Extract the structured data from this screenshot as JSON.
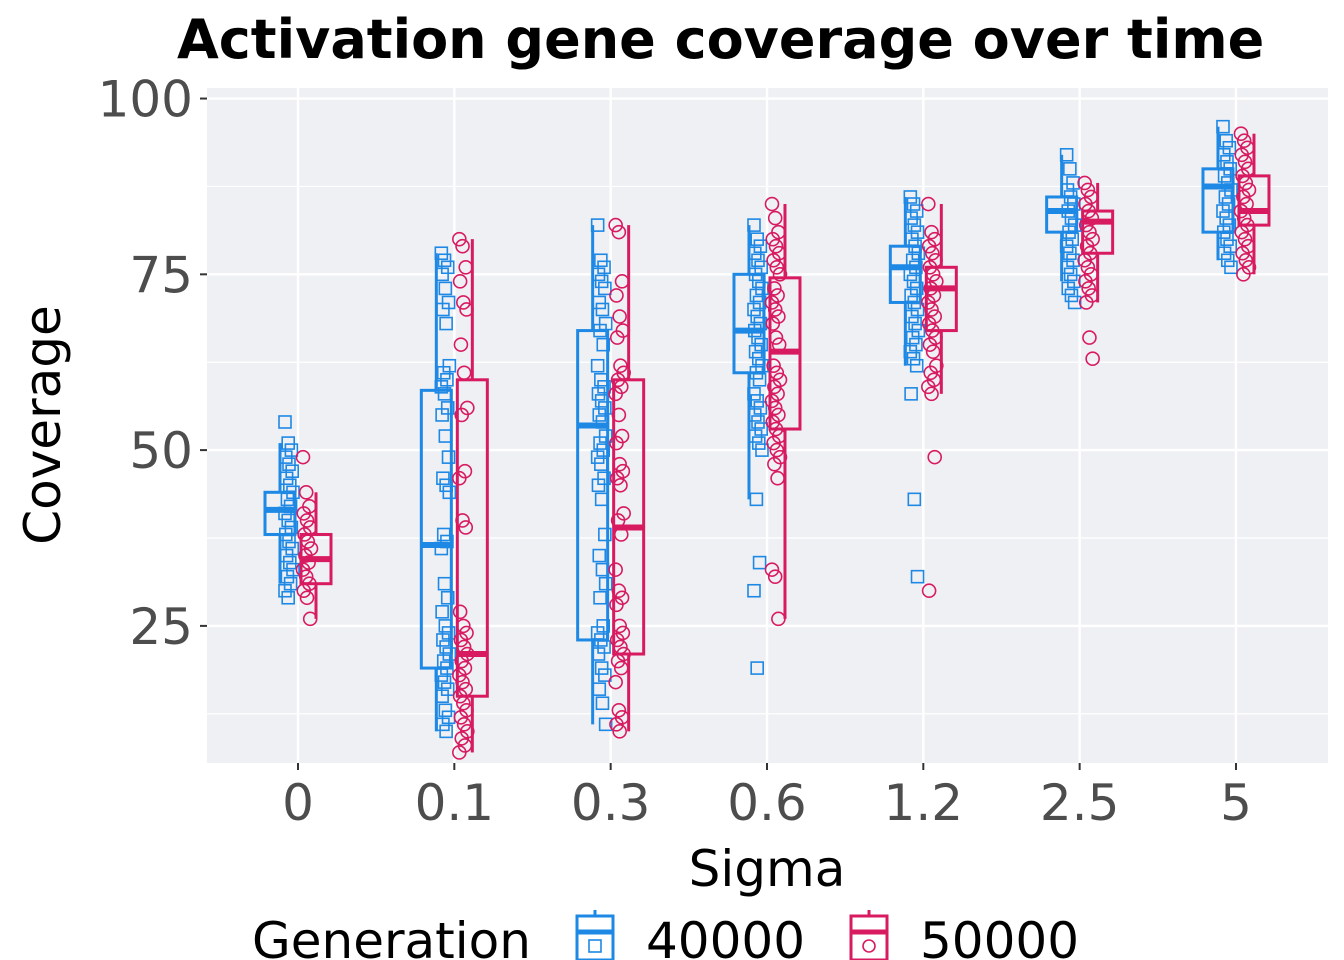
{
  "chart_data": {
    "type": "box",
    "title": "Activation gene coverage over time",
    "xlabel": "Sigma",
    "ylabel": "Coverage",
    "categories": [
      "0",
      "0.1",
      "0.3",
      "0.6",
      "1.2",
      "2.5",
      "5"
    ],
    "yticks": [
      25,
      50,
      75,
      100
    ],
    "ylim": [
      5.5,
      101.5
    ],
    "legend": {
      "title": "Generation",
      "position": "bottom"
    },
    "colors": {
      "40000": "#1e88e5",
      "50000": "#d81b60",
      "panel": "#eff0f4",
      "grid": "#ffffff"
    },
    "series": [
      {
        "name": "40000",
        "marker": "square",
        "boxes": [
          {
            "whisker_low": 31,
            "q1": 38,
            "median": 41.5,
            "q3": 44,
            "whisker_high": 51,
            "points": [
              54,
              51,
              50,
              49,
              48,
              47,
              46,
              45,
              44,
              43,
              42,
              41,
              40,
              39,
              38,
              37,
              36,
              35,
              34,
              33,
              32,
              31,
              30,
              29
            ]
          },
          {
            "whisker_low": 10,
            "q1": 19,
            "median": 36.5,
            "q3": 58.5,
            "whisker_high": 78,
            "points": [
              78,
              77,
              76,
              75,
              73,
              71,
              70,
              68,
              62,
              61,
              60,
              59,
              58,
              56,
              55,
              52,
              49,
              46,
              45,
              44,
              38,
              37,
              36,
              31,
              29,
              27,
              25,
              24,
              23,
              22,
              21,
              20,
              19,
              18,
              17,
              16,
              15,
              13,
              12,
              11,
              10
            ]
          },
          {
            "whisker_low": 11,
            "q1": 23,
            "median": 53.5,
            "q3": 67,
            "whisker_high": 82,
            "points": [
              82,
              77,
              76,
              75,
              74,
              73,
              71,
              70,
              68,
              67,
              65,
              62,
              60,
              59,
              58,
              57,
              56,
              55,
              54,
              52,
              51,
              50,
              49,
              48,
              46,
              45,
              43,
              38,
              35,
              33,
              31,
              29,
              25,
              24,
              23,
              22,
              21,
              19,
              18,
              16,
              14,
              11
            ]
          },
          {
            "whisker_low": 43,
            "q1": 61,
            "median": 67,
            "q3": 75,
            "whisker_high": 82,
            "points": [
              82,
              80,
              79,
              78,
              77,
              76,
              75,
              74,
              73,
              72,
              71,
              70,
              69,
              68,
              67,
              66,
              65,
              64,
              63,
              62,
              61,
              60,
              58,
              57,
              56,
              55,
              54,
              53,
              52,
              51,
              50,
              43,
              34,
              30,
              19
            ]
          },
          {
            "whisker_low": 62,
            "q1": 71,
            "median": 76,
            "q3": 79,
            "whisker_high": 86,
            "points": [
              86,
              85,
              84,
              83,
              82,
              81,
              80,
              79,
              78,
              77,
              76,
              75,
              74,
              73,
              72,
              71,
              70,
              69,
              68,
              67,
              66,
              65,
              64,
              63,
              62,
              58,
              43,
              32
            ]
          },
          {
            "whisker_low": 74,
            "q1": 81,
            "median": 84,
            "q3": 86,
            "whisker_high": 92,
            "points": [
              92,
              90,
              88,
              87,
              86,
              85,
              84,
              83,
              82,
              81,
              80,
              79,
              78,
              77,
              76,
              75,
              74,
              73,
              72,
              71
            ]
          },
          {
            "whisker_low": 77,
            "q1": 81,
            "median": 87.5,
            "q3": 90,
            "whisker_high": 96,
            "points": [
              96,
              94,
              93,
              92,
              91,
              90,
              89,
              88,
              87,
              86,
              85,
              84,
              83,
              82,
              81,
              80,
              79,
              78,
              77,
              76
            ]
          }
        ]
      },
      {
        "name": "50000",
        "marker": "circle",
        "boxes": [
          {
            "whisker_low": 26,
            "q1": 31,
            "median": 34.5,
            "q3": 38,
            "whisker_high": 44,
            "points": [
              49,
              44,
              42,
              41,
              40,
              39,
              38,
              37,
              36,
              35,
              34,
              33,
              32,
              31,
              30,
              29,
              26
            ]
          },
          {
            "whisker_low": 7,
            "q1": 15,
            "median": 21,
            "q3": 60,
            "whisker_high": 80,
            "points": [
              80,
              79,
              76,
              74,
              71,
              70,
              65,
              61,
              56,
              55,
              47,
              46,
              40,
              39,
              27,
              25,
              24,
              23,
              22,
              21,
              20,
              19,
              18,
              17,
              16,
              15,
              14,
              13,
              12,
              11,
              10,
              9,
              8,
              7
            ]
          },
          {
            "whisker_low": 10,
            "q1": 21,
            "median": 39,
            "q3": 60,
            "whisker_high": 82,
            "points": [
              82,
              81,
              74,
              72,
              69,
              67,
              66,
              62,
              61,
              60,
              59,
              58,
              55,
              52,
              51,
              48,
              47,
              46,
              45,
              41,
              40,
              38,
              33,
              30,
              29,
              28,
              25,
              24,
              23,
              22,
              21,
              20,
              19,
              17,
              13,
              12,
              11,
              10
            ]
          },
          {
            "whisker_low": 26,
            "q1": 53,
            "median": 64,
            "q3": 74.5,
            "whisker_high": 85,
            "points": [
              85,
              83,
              81,
              80,
              79,
              78,
              77,
              76,
              75,
              73,
              72,
              71,
              70,
              69,
              68,
              66,
              65,
              62,
              61,
              60,
              59,
              58,
              57,
              56,
              55,
              54,
              53,
              52,
              51,
              50,
              49,
              48,
              46,
              33,
              32,
              26
            ]
          },
          {
            "whisker_low": 58,
            "q1": 67,
            "median": 73,
            "q3": 76,
            "whisker_high": 85,
            "points": [
              85,
              81,
              80,
              79,
              78,
              77,
              76,
              75,
              74,
              73,
              72,
              71,
              70,
              69,
              68,
              67,
              66,
              65,
              64,
              62,
              61,
              60,
              59,
              58,
              49,
              30
            ]
          },
          {
            "whisker_low": 71,
            "q1": 78,
            "median": 82.5,
            "q3": 84,
            "whisker_high": 88,
            "points": [
              88,
              87,
              86,
              85,
              84,
              83,
              82,
              81,
              80,
              79,
              78,
              77,
              76,
              75,
              74,
              73,
              72,
              71,
              66,
              63
            ]
          },
          {
            "whisker_low": 75,
            "q1": 82,
            "median": 84,
            "q3": 89,
            "whisker_high": 95,
            "points": [
              95,
              94,
              93,
              92,
              91,
              90,
              89,
              88,
              87,
              86,
              85,
              84,
              83,
              82,
              81,
              80,
              79,
              78,
              77,
              76,
              75
            ]
          }
        ]
      }
    ]
  }
}
